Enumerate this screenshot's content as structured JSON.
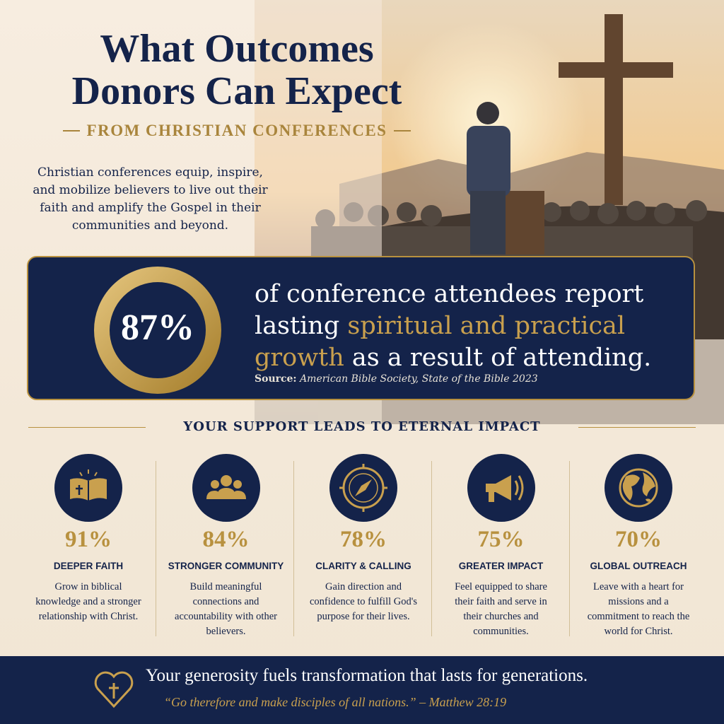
{
  "header": {
    "title_lines": [
      "What Outcomes",
      "Donors Can Expect"
    ],
    "subtitle": "FROM CHRISTIAN CONFERENCES",
    "intro": "Christian conferences equip, inspire, and mobilize believers to live out their faith and amplify the Gospel in their communities and beyond."
  },
  "hero": {
    "stat": "87%",
    "text_before": "of conference attendees report lasting ",
    "highlight": "spiritual and practical growth",
    "text_after": " as a result of attending.",
    "source_label": "Source:",
    "source": "American Bible Society, State of the Bible 2023"
  },
  "section_title": "YOUR SUPPORT LEADS TO ETERNAL IMPACT",
  "items": [
    {
      "stat": "91%",
      "title": "DEEPER FAITH",
      "text": "Grow in biblical knowledge and a stronger relationship with Christ."
    },
    {
      "stat": "84%",
      "title": "STRONGER COMMUNITY",
      "text": "Build meaningful connections and accountability with other believers."
    },
    {
      "stat": "78%",
      "title": "CLARITY & CALLING",
      "text": "Gain direction and confidence to fulfill God's purpose for their lives."
    },
    {
      "stat": "75%",
      "title": "GREATER IMPACT",
      "text": "Feel equipped to share their faith and serve in their churches and communities."
    },
    {
      "stat": "70%",
      "title": "GLOBAL OUTREACH",
      "text": "Leave with a heart for missions and a commitment to reach the world for Christ."
    }
  ],
  "footer": {
    "message": "Your generosity fuels transformation that lasts for generations.",
    "quote": "“Go therefore and make disciples of all nations.” – Matthew 28:19"
  }
}
